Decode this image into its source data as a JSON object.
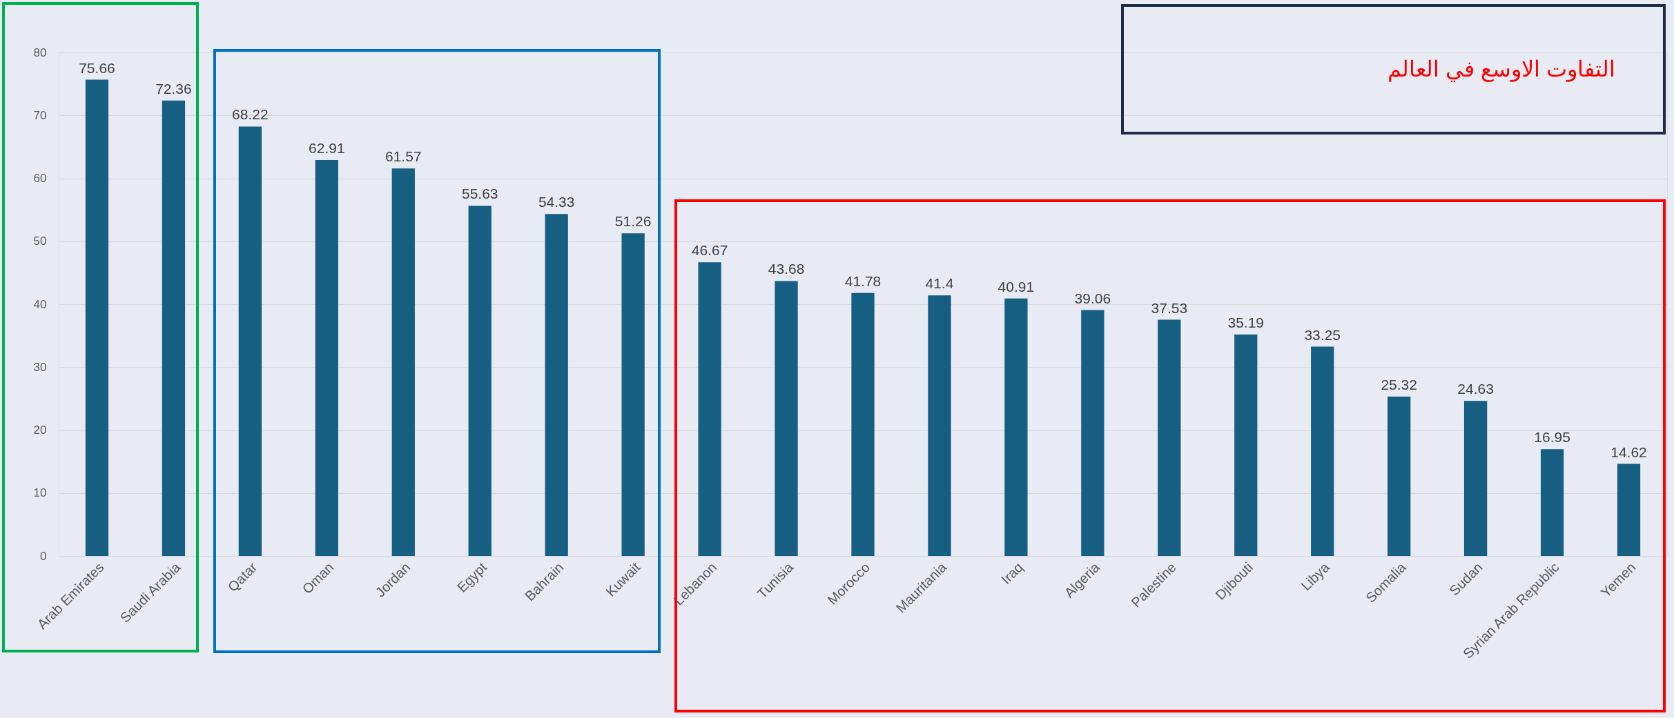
{
  "chart_data": {
    "type": "bar",
    "categories": [
      "Arab Emirates",
      "Saudi Arabia",
      "Qatar",
      "Oman",
      "Jordan",
      "Egypt",
      "Bahrain",
      "Kuwait",
      "Lebanon",
      "Tunisia",
      "Morocco",
      "Mauritania",
      "Iraq",
      "Algeria",
      "Palestine",
      "Djibouti",
      "Libya",
      "Somalia",
      "Sudan",
      "Syrian Arab Republic",
      "Yemen"
    ],
    "values": [
      75.66,
      72.36,
      68.22,
      62.91,
      61.57,
      55.63,
      54.33,
      51.26,
      46.67,
      43.68,
      41.78,
      41.4,
      40.91,
      39.06,
      37.53,
      35.19,
      33.25,
      25.32,
      24.63,
      16.95,
      14.62
    ],
    "color": "#175e83",
    "ylim": [
      0,
      80
    ],
    "yticks": [
      0,
      10,
      20,
      30,
      40,
      50,
      60,
      70,
      80
    ],
    "grid": "y",
    "data_labels": true,
    "annotations": [
      "التفاوت الاوسع في العالم"
    ]
  }
}
